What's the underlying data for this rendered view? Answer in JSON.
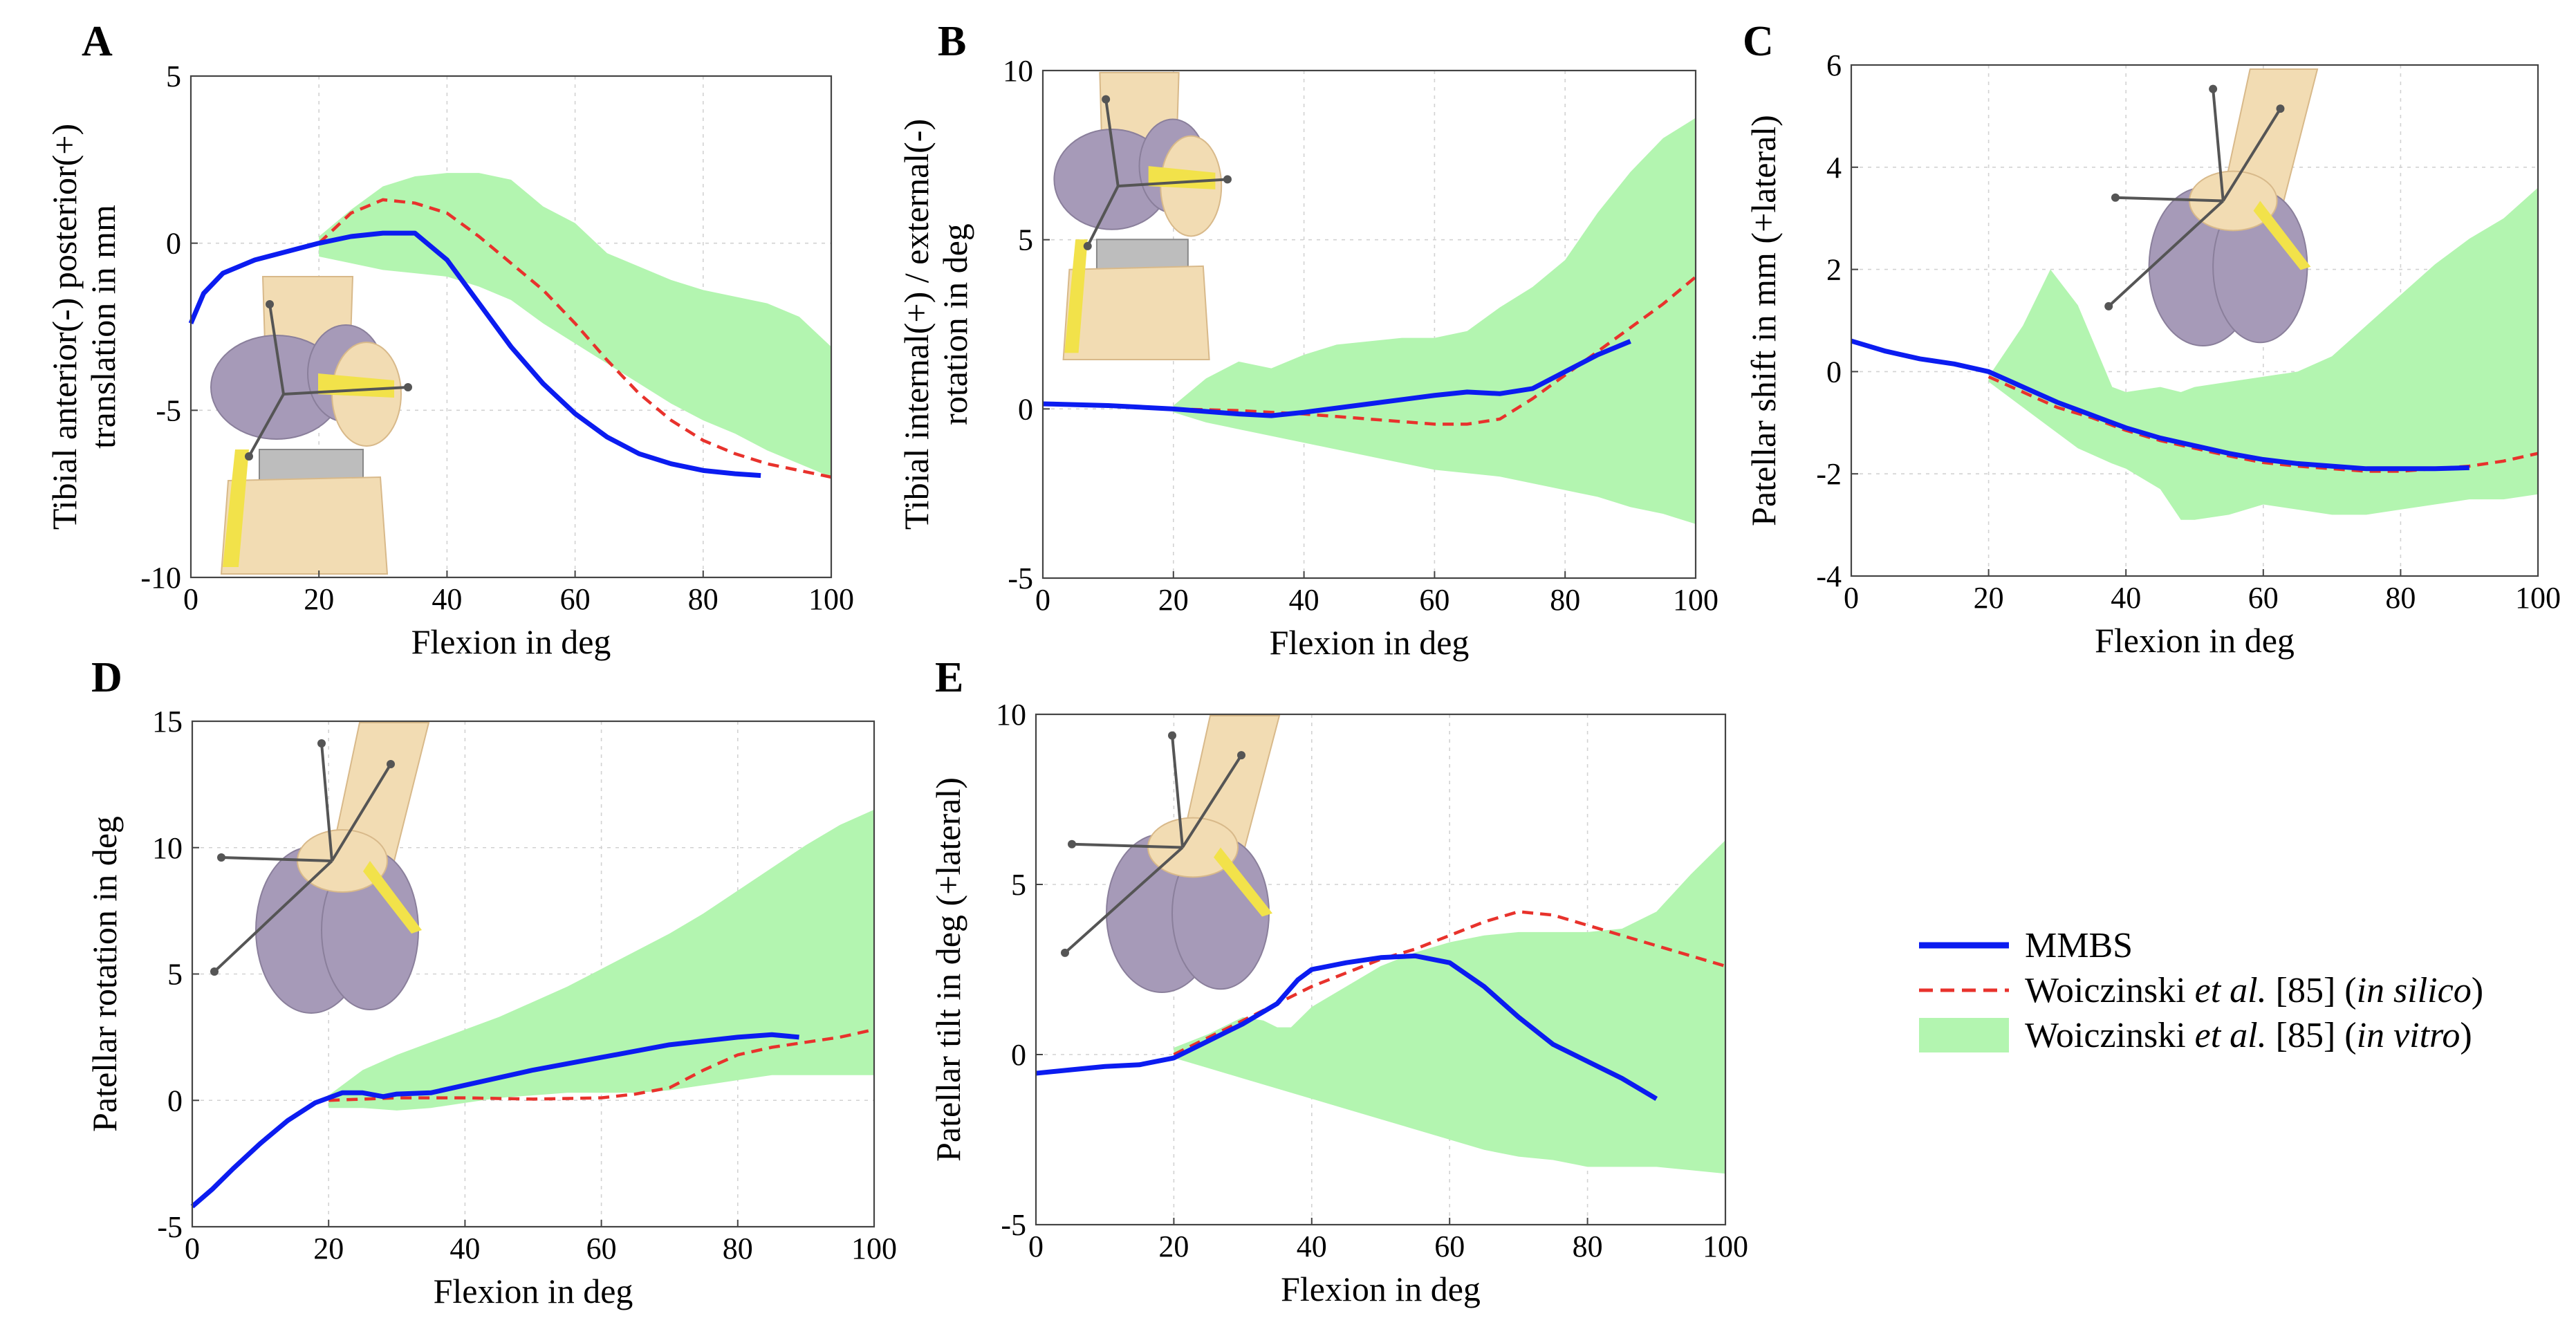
{
  "colors": {
    "mmbs": "#0b1cf0",
    "in_silico": "#e8322c",
    "in_vitro": "#b3f5b0",
    "bone": "#f2dcb3",
    "bone_dark": "#d8b98a",
    "cartilage": "#a69ab8",
    "ligament": "#f2e24a",
    "spacer": "#bdbdbd",
    "axis_arrow": "#555555"
  },
  "legend": {
    "mmbs": "MMBS",
    "silico_prefix": "Woiczinski ",
    "silico_etal": "et al.",
    "silico_ref": " [85] (",
    "silico_italic": "in silico",
    "silico_close": ")",
    "vitro_prefix": "Woiczinski ",
    "vitro_etal": "et al.",
    "vitro_ref": " [85] (",
    "vitro_italic": "in vitro",
    "vitro_close": ")"
  },
  "chart_data": [
    {
      "panel": "A",
      "type": "line",
      "xlabel": "Flexion in deg",
      "ylabel": [
        "Tibial anterior(-) posterior(+)",
        "translation in mm"
      ],
      "xlim": [
        0,
        100
      ],
      "ylim": [
        -10,
        5
      ],
      "xticks": [
        0,
        20,
        40,
        60,
        80,
        100
      ],
      "yticks": [
        -10,
        -5,
        0,
        5
      ],
      "grid": true,
      "inset": "tibia",
      "series": [
        {
          "name": "MMBS",
          "x": [
            0,
            2,
            5,
            10,
            15,
            20,
            25,
            30,
            35,
            40,
            45,
            50,
            55,
            60,
            65,
            70,
            75,
            80,
            85,
            89
          ],
          "y": [
            -2.4,
            -1.5,
            -0.9,
            -0.5,
            -0.25,
            0.0,
            0.2,
            0.3,
            0.3,
            -0.5,
            -1.8,
            -3.1,
            -4.2,
            -5.1,
            -5.8,
            -6.3,
            -6.6,
            -6.8,
            -6.9,
            -6.95
          ]
        },
        {
          "name": "Woiczinski et al. [85] (in silico)",
          "x": [
            20,
            25,
            30,
            35,
            40,
            45,
            50,
            55,
            60,
            65,
            70,
            75,
            80,
            85,
            90,
            95,
            100
          ],
          "y": [
            0.0,
            0.9,
            1.3,
            1.2,
            0.9,
            0.2,
            -0.6,
            -1.4,
            -2.4,
            -3.5,
            -4.5,
            -5.3,
            -5.9,
            -6.3,
            -6.6,
            -6.8,
            -7.0
          ]
        },
        {
          "name": "Woiczinski et al. [85] (in vitro)",
          "x": [
            20,
            25,
            30,
            35,
            40,
            45,
            50,
            55,
            60,
            65,
            70,
            75,
            80,
            85,
            90,
            95,
            100
          ],
          "upper": [
            0.2,
            1.0,
            1.7,
            2.0,
            2.1,
            2.1,
            1.9,
            1.1,
            0.6,
            -0.3,
            -0.7,
            -1.1,
            -1.4,
            -1.6,
            -1.8,
            -2.2,
            -3.1
          ],
          "lower": [
            -0.4,
            -0.6,
            -0.8,
            -0.9,
            -1.0,
            -1.3,
            -1.7,
            -2.4,
            -3.0,
            -3.6,
            -4.2,
            -4.8,
            -5.3,
            -5.7,
            -6.2,
            -6.6,
            -7.0
          ]
        }
      ]
    },
    {
      "panel": "B",
      "type": "line",
      "xlabel": "Flexion in deg",
      "ylabel": [
        "Tibial internal(+) / external(-)",
        "rotation in deg"
      ],
      "xlim": [
        0,
        100
      ],
      "ylim": [
        -5,
        10
      ],
      "xticks": [
        0,
        20,
        40,
        60,
        80,
        100
      ],
      "yticks": [
        -5,
        0,
        5,
        10
      ],
      "grid": true,
      "inset": "tibia",
      "series": [
        {
          "name": "MMBS",
          "x": [
            0,
            10,
            20,
            30,
            35,
            40,
            50,
            60,
            65,
            70,
            75,
            80,
            85,
            90
          ],
          "y": [
            0.15,
            0.1,
            0.0,
            -0.15,
            -0.2,
            -0.1,
            0.15,
            0.4,
            0.5,
            0.45,
            0.6,
            1.1,
            1.6,
            2.0
          ]
        },
        {
          "name": "Woiczinski et al. [85] (in silico)",
          "x": [
            20,
            30,
            40,
            50,
            60,
            65,
            70,
            75,
            80,
            85,
            90,
            95,
            100
          ],
          "y": [
            0.0,
            -0.05,
            -0.15,
            -0.3,
            -0.45,
            -0.45,
            -0.3,
            0.3,
            1.0,
            1.7,
            2.4,
            3.1,
            3.9
          ]
        },
        {
          "name": "Woiczinski et al. [85] (in vitro)",
          "x": [
            20,
            25,
            30,
            35,
            40,
            45,
            50,
            55,
            60,
            65,
            70,
            75,
            80,
            85,
            90,
            95,
            100
          ],
          "upper": [
            0.1,
            0.9,
            1.4,
            1.2,
            1.6,
            1.9,
            2.0,
            2.1,
            2.1,
            2.3,
            3.0,
            3.6,
            4.4,
            5.8,
            7.0,
            8.0,
            8.6
          ],
          "lower": [
            -0.1,
            -0.4,
            -0.6,
            -0.8,
            -1.0,
            -1.2,
            -1.4,
            -1.6,
            -1.8,
            -1.9,
            -2.0,
            -2.2,
            -2.4,
            -2.6,
            -2.9,
            -3.1,
            -3.4
          ]
        }
      ]
    },
    {
      "panel": "C",
      "type": "line",
      "xlabel": "Flexion in deg",
      "ylabel": [
        "Patellar shift in mm (+lateral)"
      ],
      "xlim": [
        0,
        100
      ],
      "ylim": [
        -4,
        6
      ],
      "xticks": [
        0,
        20,
        40,
        60,
        80,
        100
      ],
      "yticks": [
        -4,
        -2,
        0,
        2,
        4,
        6
      ],
      "grid": true,
      "inset": "femur",
      "series": [
        {
          "name": "MMBS",
          "x": [
            0,
            5,
            10,
            15,
            20,
            25,
            30,
            35,
            40,
            45,
            50,
            55,
            60,
            65,
            70,
            75,
            80,
            85,
            90
          ],
          "y": [
            0.6,
            0.4,
            0.25,
            0.15,
            0.0,
            -0.3,
            -0.6,
            -0.85,
            -1.1,
            -1.3,
            -1.45,
            -1.6,
            -1.72,
            -1.8,
            -1.85,
            -1.9,
            -1.9,
            -1.9,
            -1.88
          ]
        },
        {
          "name": "Woiczinski et al. [85] (in silico)",
          "x": [
            20,
            25,
            30,
            35,
            40,
            45,
            50,
            55,
            60,
            65,
            70,
            75,
            80,
            85,
            90,
            95,
            100
          ],
          "y": [
            -0.1,
            -0.4,
            -0.7,
            -0.9,
            -1.15,
            -1.35,
            -1.5,
            -1.65,
            -1.78,
            -1.85,
            -1.9,
            -1.95,
            -1.95,
            -1.9,
            -1.85,
            -1.75,
            -1.6
          ]
        },
        {
          "name": "Woiczinski et al. [85] (in vitro)",
          "x": [
            20,
            25,
            29,
            33,
            38,
            40,
            45,
            48,
            50,
            55,
            60,
            65,
            70,
            75,
            80,
            85,
            90,
            95,
            100
          ],
          "upper": [
            -0.1,
            0.9,
            2.0,
            1.3,
            -0.3,
            -0.4,
            -0.3,
            -0.4,
            -0.3,
            -0.2,
            -0.1,
            0.0,
            0.3,
            0.9,
            1.5,
            2.1,
            2.6,
            3.0,
            3.6
          ],
          "lower": [
            -0.2,
            -0.7,
            -1.1,
            -1.5,
            -1.8,
            -1.9,
            -2.3,
            -2.9,
            -2.9,
            -2.8,
            -2.6,
            -2.7,
            -2.8,
            -2.8,
            -2.7,
            -2.6,
            -2.5,
            -2.5,
            -2.4
          ]
        }
      ]
    },
    {
      "panel": "D",
      "type": "line",
      "xlabel": "Flexion in deg",
      "ylabel": [
        "Patellar rotation in deg"
      ],
      "xlim": [
        0,
        100
      ],
      "ylim": [
        -5,
        15
      ],
      "xticks": [
        0,
        20,
        40,
        60,
        80,
        100
      ],
      "yticks": [
        -5,
        0,
        5,
        10,
        15
      ],
      "grid": true,
      "inset": "femur",
      "series": [
        {
          "name": "MMBS",
          "x": [
            0,
            3,
            6,
            10,
            14,
            18,
            20,
            22,
            25,
            28,
            30,
            35,
            40,
            50,
            60,
            70,
            80,
            85,
            89
          ],
          "y": [
            -4.2,
            -3.5,
            -2.7,
            -1.7,
            -0.8,
            -0.1,
            0.1,
            0.3,
            0.3,
            0.15,
            0.25,
            0.3,
            0.6,
            1.2,
            1.7,
            2.2,
            2.5,
            2.6,
            2.5
          ]
        },
        {
          "name": "Woiczinski et al. [85] (in silico)",
          "x": [
            20,
            25,
            30,
            40,
            50,
            60,
            65,
            70,
            75,
            80,
            85,
            90,
            95,
            100
          ],
          "y": [
            0.0,
            0.05,
            0.1,
            0.1,
            0.05,
            0.1,
            0.25,
            0.5,
            1.2,
            1.8,
            2.1,
            2.3,
            2.5,
            2.8
          ]
        },
        {
          "name": "Woiczinski et al. [85] (in vitro)",
          "x": [
            20,
            25,
            30,
            35,
            40,
            45,
            50,
            55,
            60,
            65,
            70,
            75,
            80,
            85,
            90,
            95,
            100
          ],
          "upper": [
            0.2,
            1.2,
            1.8,
            2.3,
            2.8,
            3.3,
            3.9,
            4.5,
            5.2,
            5.9,
            6.6,
            7.4,
            8.3,
            9.2,
            10.1,
            10.9,
            11.5
          ],
          "lower": [
            -0.3,
            -0.3,
            -0.4,
            -0.3,
            -0.1,
            0.1,
            0.2,
            0.3,
            0.3,
            0.3,
            0.4,
            0.6,
            0.8,
            1.0,
            1.0,
            1.0,
            1.0
          ]
        }
      ]
    },
    {
      "panel": "E",
      "type": "line",
      "xlabel": "Flexion in deg",
      "ylabel": [
        "Patellar tilt in deg (+lateral)"
      ],
      "xlim": [
        0,
        100
      ],
      "ylim": [
        -5,
        10
      ],
      "xticks": [
        0,
        20,
        40,
        60,
        80,
        100
      ],
      "yticks": [
        -5,
        0,
        5,
        10
      ],
      "grid": true,
      "inset": "femur",
      "series": [
        {
          "name": "MMBS",
          "x": [
            0,
            5,
            10,
            15,
            20,
            25,
            30,
            35,
            38,
            40,
            45,
            50,
            55,
            60,
            65,
            70,
            75,
            80,
            85,
            90
          ],
          "y": [
            -0.55,
            -0.45,
            -0.35,
            -0.3,
            -0.1,
            0.4,
            0.9,
            1.5,
            2.2,
            2.5,
            2.7,
            2.85,
            2.9,
            2.7,
            2.0,
            1.1,
            0.3,
            -0.2,
            -0.7,
            -1.3
          ]
        },
        {
          "name": "Woiczinski et al. [85] (in silico)",
          "x": [
            20,
            25,
            30,
            35,
            40,
            45,
            50,
            55,
            60,
            65,
            70,
            75,
            80,
            85,
            90,
            95,
            100
          ],
          "y": [
            0.0,
            0.5,
            1.0,
            1.5,
            2.0,
            2.4,
            2.8,
            3.1,
            3.5,
            3.9,
            4.2,
            4.1,
            3.8,
            3.5,
            3.2,
            2.9,
            2.6
          ]
        },
        {
          "name": "Woiczinski et al. [85] (in vitro)",
          "x": [
            20,
            25,
            30,
            33,
            35,
            37,
            40,
            45,
            50,
            55,
            60,
            65,
            70,
            75,
            80,
            85,
            90,
            95,
            100
          ],
          "upper": [
            0.2,
            0.6,
            1.1,
            1.0,
            0.8,
            0.8,
            1.4,
            2.0,
            2.6,
            3.0,
            3.3,
            3.5,
            3.6,
            3.6,
            3.6,
            3.7,
            4.2,
            5.3,
            6.3
          ]
        },
        {
          "name": "_",
          "x": [],
          "y": []
        }
      ]
    }
  ]
}
